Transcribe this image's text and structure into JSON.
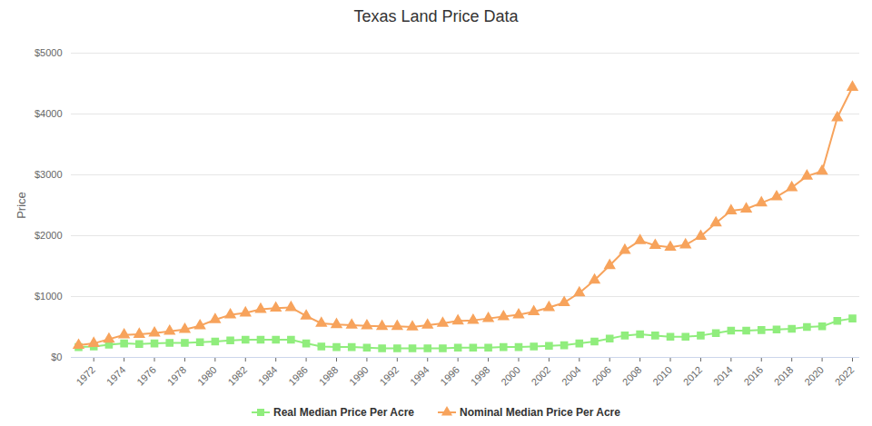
{
  "chart_data": {
    "type": "line",
    "title": "Texas Land Price Data",
    "ylabel": "Price",
    "x": [
      1971,
      1972,
      1973,
      1974,
      1975,
      1976,
      1977,
      1978,
      1979,
      1980,
      1981,
      1982,
      1983,
      1984,
      1985,
      1986,
      1987,
      1988,
      1989,
      1990,
      1991,
      1992,
      1993,
      1994,
      1995,
      1996,
      1997,
      1998,
      1999,
      2000,
      2001,
      2002,
      2003,
      2004,
      2005,
      2006,
      2007,
      2008,
      2009,
      2010,
      2011,
      2012,
      2013,
      2014,
      2015,
      2016,
      2017,
      2018,
      2019,
      2020,
      2021,
      2022
    ],
    "xlim": [
      1971,
      2022
    ],
    "xticks": [
      1972,
      1974,
      1976,
      1978,
      1980,
      1982,
      1984,
      1986,
      1988,
      1990,
      1992,
      1994,
      1996,
      1998,
      2000,
      2002,
      2004,
      2006,
      2008,
      2010,
      2012,
      2014,
      2016,
      2018,
      2020,
      2022
    ],
    "ylim": [
      0,
      5000
    ],
    "yticks": [
      {
        "value": 0,
        "label": "$0"
      },
      {
        "value": 1000,
        "label": "$1000"
      },
      {
        "value": 2000,
        "label": "$2000"
      },
      {
        "value": 3000,
        "label": "$3000"
      },
      {
        "value": 4000,
        "label": "$4000"
      },
      {
        "value": 5000,
        "label": "$5000"
      }
    ],
    "grid": true,
    "legend": "bottom",
    "series": [
      {
        "name": "Real Median Price Per Acre",
        "color": "#90ed7d",
        "marker": "square",
        "line_style": "solid",
        "values": [
          170,
          180,
          210,
          230,
          220,
          230,
          240,
          240,
          250,
          260,
          280,
          290,
          290,
          290,
          290,
          230,
          180,
          170,
          170,
          160,
          150,
          150,
          150,
          150,
          150,
          160,
          160,
          160,
          170,
          170,
          180,
          190,
          200,
          230,
          260,
          310,
          360,
          380,
          360,
          340,
          340,
          360,
          400,
          440,
          440,
          450,
          460,
          470,
          500,
          510,
          600,
          640
        ]
      },
      {
        "name": "Nominal Median Price Per Acre",
        "color": "#f7a35c",
        "marker": "triangle",
        "line_style": "solid",
        "values": [
          200,
          230,
          300,
          370,
          380,
          400,
          430,
          460,
          520,
          620,
          700,
          730,
          790,
          810,
          820,
          680,
          560,
          540,
          530,
          520,
          510,
          510,
          500,
          530,
          560,
          600,
          610,
          640,
          670,
          700,
          750,
          820,
          900,
          1060,
          1270,
          1510,
          1760,
          1920,
          1840,
          1810,
          1850,
          1990,
          2210,
          2410,
          2440,
          2540,
          2640,
          2790,
          2980,
          3060,
          3940,
          4440
        ]
      }
    ]
  }
}
